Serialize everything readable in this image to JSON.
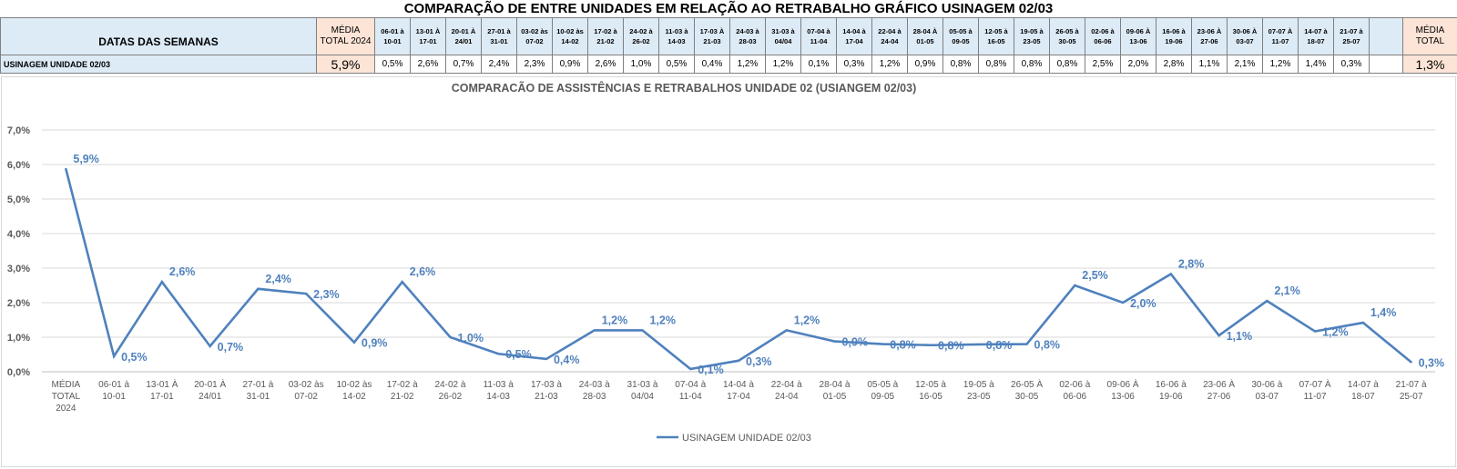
{
  "sheet": {
    "title": "COMPARAÇÃO DE ENTRE UNIDADES EM RELAÇÃO AO RETRABALHO GRÁFICO USINAGEM 02/03"
  },
  "table": {
    "header_label": "DATAS DAS SEMANAS",
    "media_header": [
      "MÉDIA",
      "TOTAL 2024"
    ],
    "media_total_header": [
      "MÉDIA",
      "TOTAL"
    ],
    "weeks": [
      [
        "06-01 à",
        "10-01"
      ],
      [
        "13-01 À",
        "17-01"
      ],
      [
        "20-01 À",
        "24/01"
      ],
      [
        "27-01 à",
        "31-01"
      ],
      [
        "03-02 às",
        "07-02"
      ],
      [
        "10-02 às",
        "14-02"
      ],
      [
        "17-02 à",
        "21-02"
      ],
      [
        "24-02 à",
        "26-02"
      ],
      [
        "11-03 à",
        "14-03"
      ],
      [
        "17-03 À",
        "21-03"
      ],
      [
        "24-03 à",
        "28-03"
      ],
      [
        "31-03 à",
        "04/04"
      ],
      [
        "07-04 à",
        "11-04"
      ],
      [
        "14-04 à",
        "17-04"
      ],
      [
        "22-04 à",
        "24-04"
      ],
      [
        "28-04 À",
        "01-05"
      ],
      [
        "05-05 à",
        "09-05"
      ],
      [
        "12-05 à",
        "16-05"
      ],
      [
        "19-05 à",
        "23-05"
      ],
      [
        "26-05 à",
        "30-05"
      ],
      [
        "02-06 à",
        "06-06"
      ],
      [
        "09-06 À",
        "13-06"
      ],
      [
        "16-06 à",
        "19-06"
      ],
      [
        "23-06 À",
        "27-06"
      ],
      [
        "30-06 À",
        "03-07"
      ],
      [
        "07-07 À",
        "11-07"
      ],
      [
        "14-07 à",
        "18-07"
      ],
      [
        "21-07 à",
        "25-07"
      ]
    ],
    "row_label": "USINAGEM UNIDADE 02/03",
    "media_value": "5,9%",
    "values": [
      "0,5%",
      "2,6%",
      "0,7%",
      "2,4%",
      "2,3%",
      "0,9%",
      "2,6%",
      "1,0%",
      "0,5%",
      "0,4%",
      "1,2%",
      "1,2%",
      "0,1%",
      "0,3%",
      "1,2%",
      "0,9%",
      "0,8%",
      "0,8%",
      "0,8%",
      "0,8%",
      "2,5%",
      "2,0%",
      "2,8%",
      "1,1%",
      "2,1%",
      "1,2%",
      "1,4%",
      "0,3%"
    ],
    "media_total_value": "1,3%"
  },
  "chart_data": {
    "type": "line",
    "title": "COMPARACÃO DE ASSISTÊNCIAS E RETRABALHOS UNIDADE 02  (USIANGEM 02/03)",
    "categories": [
      [
        "MÉDIA",
        "TOTAL",
        "2024"
      ],
      [
        "06-01 à",
        "10-01"
      ],
      [
        "13-01 À",
        "17-01"
      ],
      [
        "20-01 À",
        "24/01"
      ],
      [
        "27-01 à",
        "31-01"
      ],
      [
        "03-02 às",
        "07-02"
      ],
      [
        "10-02 às",
        "14-02"
      ],
      [
        "17-02 à",
        "21-02"
      ],
      [
        "24-02 à",
        "26-02"
      ],
      [
        "11-03 à",
        "14-03"
      ],
      [
        "17-03 à",
        "21-03"
      ],
      [
        "24-03 à",
        "28-03"
      ],
      [
        "31-03 à",
        "04/04"
      ],
      [
        "07-04 à",
        "11-04"
      ],
      [
        "14-04 à",
        "17-04"
      ],
      [
        "22-04 à",
        "24-04"
      ],
      [
        "28-04 à",
        "01-05"
      ],
      [
        "05-05 à",
        "09-05"
      ],
      [
        "12-05 à",
        "16-05"
      ],
      [
        "19-05 à",
        "23-05"
      ],
      [
        "26-05 À",
        "30-05"
      ],
      [
        "02-06 à",
        "06-06"
      ],
      [
        "09-06 À",
        "13-06"
      ],
      [
        "16-06 à",
        "19-06"
      ],
      [
        "23-06 À",
        "27-06"
      ],
      [
        "30-06 à",
        "03-07"
      ],
      [
        "07-07 À",
        "11-07"
      ],
      [
        "14-07 à",
        "18-07"
      ],
      [
        "21-07 à",
        "25-07"
      ]
    ],
    "series": [
      {
        "name": "USINAGEM UNIDADE 02/03",
        "color": "#4f81bd",
        "values": [
          5.87,
          0.45,
          2.6,
          0.74,
          2.4,
          2.26,
          0.85,
          2.6,
          1.0,
          0.52,
          0.37,
          1.2,
          1.2,
          0.08,
          0.32,
          1.2,
          0.88,
          0.8,
          0.77,
          0.79,
          0.8,
          2.5,
          2.0,
          2.83,
          1.05,
          2.05,
          1.17,
          1.42,
          0.28
        ],
        "labels": [
          "5,9%",
          "0,5%",
          "2,6%",
          "0,7%",
          "2,4%",
          "2,3%",
          "0,9%",
          "2,6%",
          "1,0%",
          "0,5%",
          "0,4%",
          "1,2%",
          "1,2%",
          "0,1%",
          "0,3%",
          "1,2%",
          "0,9%",
          "0,8%",
          "0,8%",
          "0,8%",
          "0,8%",
          "2,5%",
          "2,0%",
          "2,8%",
          "1,1%",
          "2,1%",
          "1,2%",
          "1,4%",
          "0,3%"
        ]
      }
    ],
    "y_ticks": [
      "0,0%",
      "1,0%",
      "2,0%",
      "3,0%",
      "4,0%",
      "5,0%",
      "6,0%",
      "7,0%"
    ],
    "ylim": [
      0,
      7
    ],
    "grid": true,
    "legend_position": "bottom"
  }
}
